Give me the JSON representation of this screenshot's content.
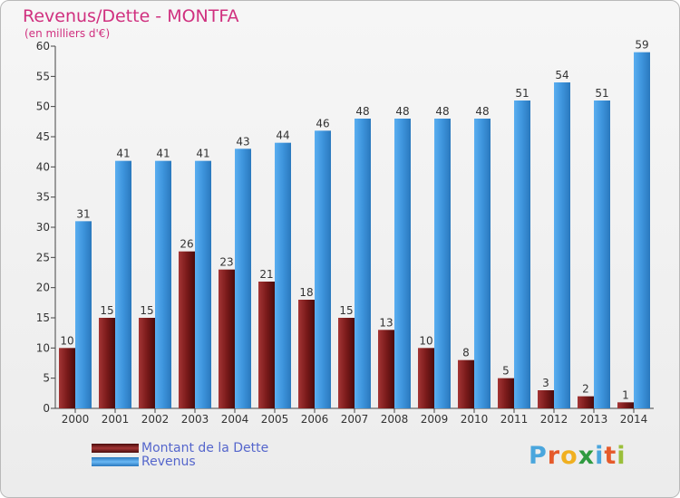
{
  "title": "Revenus/Dette - MONTFA",
  "subtitle": "(en milliers d'€)",
  "colors": {
    "dette": "#7a1a1a",
    "revenus": "#3d94dc",
    "title": "#d0307f",
    "legend_text": "#5566cc"
  },
  "legend": {
    "dette_label": "Montant de la Dette",
    "revenus_label": "Revenus"
  },
  "logo": {
    "letters": [
      "P",
      "r",
      "o",
      "x",
      "i",
      "t",
      "i"
    ],
    "colors": [
      "#4aa6dd",
      "#e55a2b",
      "#f0b020",
      "#2f9a40",
      "#4aa6dd",
      "#e55a2b",
      "#9bbf3a"
    ]
  },
  "chart_data": {
    "type": "bar",
    "title": "Revenus/Dette - MONTFA",
    "subtitle": "(en milliers d'€)",
    "categories": [
      "2000",
      "2001",
      "2002",
      "2003",
      "2004",
      "2005",
      "2006",
      "2007",
      "2008",
      "2009",
      "2010",
      "2011",
      "2012",
      "2013",
      "2014"
    ],
    "series": [
      {
        "name": "Montant de la Dette",
        "values": [
          10,
          15,
          15,
          26,
          23,
          21,
          18,
          15,
          13,
          10,
          8,
          5,
          3,
          2,
          1
        ]
      },
      {
        "name": "Revenus",
        "values": [
          31,
          41,
          41,
          41,
          43,
          44,
          46,
          48,
          48,
          48,
          48,
          51,
          54,
          51,
          59
        ]
      }
    ],
    "ylim": [
      0,
      60
    ],
    "yticks": [
      0,
      5,
      10,
      15,
      20,
      25,
      30,
      35,
      40,
      45,
      50,
      55,
      60
    ],
    "legend_position": "bottom-left",
    "grid": false
  }
}
